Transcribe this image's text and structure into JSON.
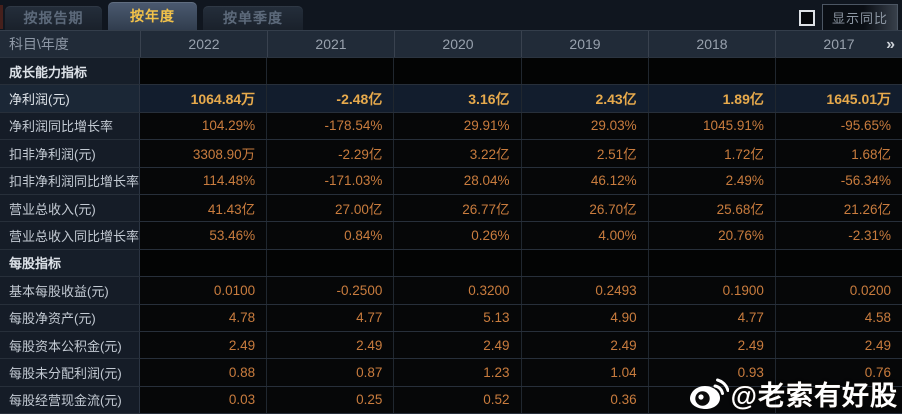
{
  "tabs": [
    {
      "label": "按报告期",
      "active": false
    },
    {
      "label": "按年度",
      "active": true
    },
    {
      "label": "按单季度",
      "active": false
    }
  ],
  "controls": {
    "show_yoy_label": "显示同比",
    "checkbox_checked": false
  },
  "table": {
    "corner_label": "科目\\年度",
    "years": [
      "2022",
      "2021",
      "2020",
      "2019",
      "2018",
      "2017"
    ],
    "more_icon": "»",
    "rows": [
      {
        "type": "section",
        "label": "成长能力指标",
        "values": [
          "",
          "",
          "",
          "",
          "",
          ""
        ]
      },
      {
        "type": "highlight",
        "label": "净利润(元)",
        "values": [
          "1064.84万",
          "-2.48亿",
          "3.16亿",
          "2.43亿",
          "1.89亿",
          "1645.01万"
        ]
      },
      {
        "type": "data",
        "label": "净利润同比增长率",
        "values": [
          "104.29%",
          "-178.54%",
          "29.91%",
          "29.03%",
          "1045.91%",
          "-95.65%"
        ]
      },
      {
        "type": "data",
        "label": "扣非净利润(元)",
        "values": [
          "3308.90万",
          "-2.29亿",
          "3.22亿",
          "2.51亿",
          "1.72亿",
          "1.68亿"
        ]
      },
      {
        "type": "data",
        "label": "扣非净利润同比增长率",
        "values": [
          "114.48%",
          "-171.03%",
          "28.04%",
          "46.12%",
          "2.49%",
          "-56.34%"
        ]
      },
      {
        "type": "data",
        "label": "营业总收入(元)",
        "values": [
          "41.43亿",
          "27.00亿",
          "26.77亿",
          "26.70亿",
          "25.68亿",
          "21.26亿"
        ]
      },
      {
        "type": "data",
        "label": "营业总收入同比增长率",
        "values": [
          "53.46%",
          "0.84%",
          "0.26%",
          "4.00%",
          "20.76%",
          "-2.31%"
        ]
      },
      {
        "type": "section",
        "label": "每股指标",
        "values": [
          "",
          "",
          "",
          "",
          "",
          ""
        ]
      },
      {
        "type": "data",
        "label": "基本每股收益(元)",
        "values": [
          "0.0100",
          "-0.2500",
          "0.3200",
          "0.2493",
          "0.1900",
          "0.0200"
        ]
      },
      {
        "type": "data",
        "label": "每股净资产(元)",
        "values": [
          "4.78",
          "4.77",
          "5.13",
          "4.90",
          "4.77",
          "4.58"
        ]
      },
      {
        "type": "data",
        "label": "每股资本公积金(元)",
        "values": [
          "2.49",
          "2.49",
          "2.49",
          "2.49",
          "2.49",
          "2.49"
        ]
      },
      {
        "type": "data",
        "label": "每股未分配利润(元)",
        "values": [
          "0.88",
          "0.87",
          "1.23",
          "1.04",
          "0.93",
          "0.76"
        ]
      },
      {
        "type": "data",
        "label": "每股经营现金流(元)",
        "values": [
          "0.03",
          "0.25",
          "0.52",
          "0.36",
          "",
          ""
        ]
      }
    ]
  },
  "watermark": {
    "handle": "@老索有好股",
    "icon": "weibo-icon"
  },
  "colors": {
    "page-bg": "#10161f",
    "accent-gold": "#f2c24a",
    "value-orange": "#c97c3e",
    "highlight-gold": "#e7aa4c",
    "header-bg": "#212b38",
    "label-cell-bg": "#151c27",
    "highlight-row-bg": "#121d2d",
    "data-cell-bg": "#060708"
  }
}
